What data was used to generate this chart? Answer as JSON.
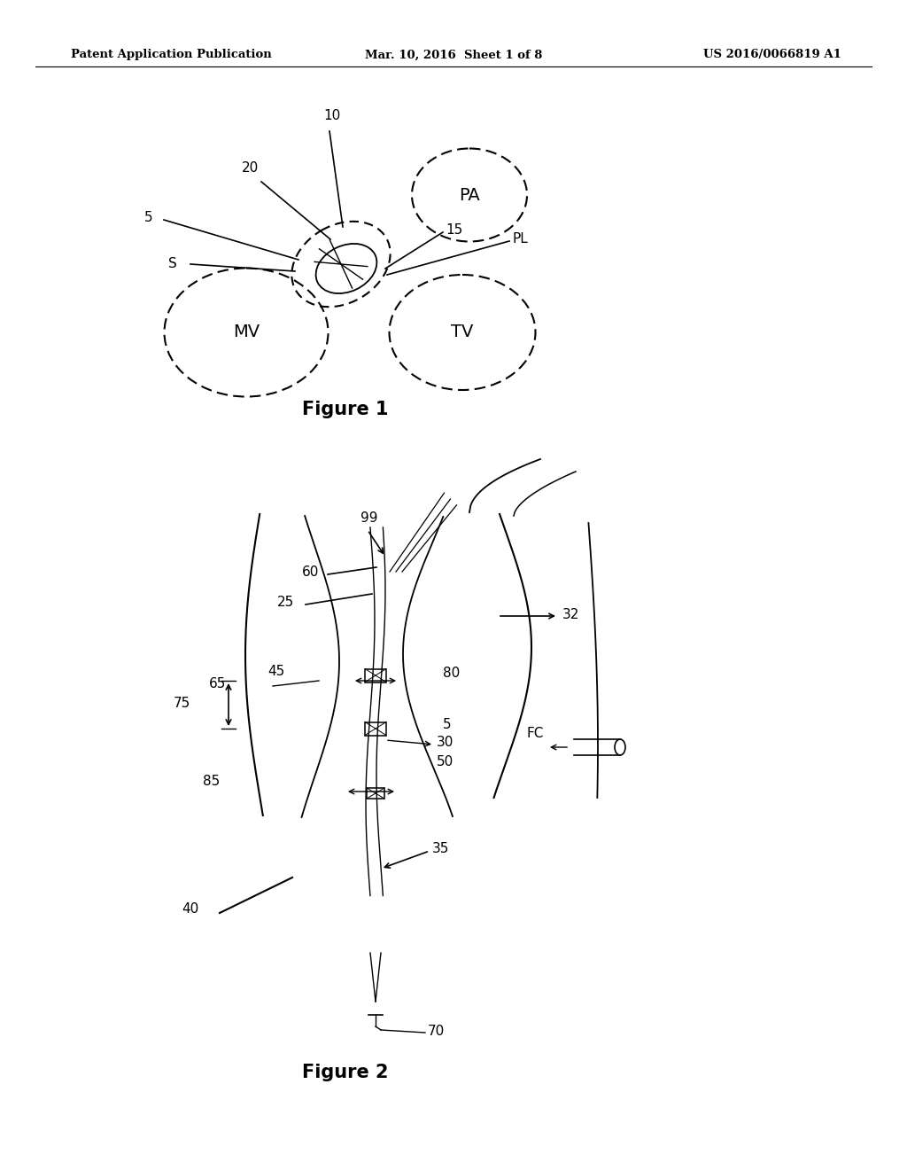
{
  "bg_color": "#ffffff",
  "header_left": "Patent Application Publication",
  "header_center": "Mar. 10, 2016  Sheet 1 of 8",
  "header_right": "US 2016/0066819 A1",
  "fig1_title": "Figure 1",
  "fig2_title": "Figure 2"
}
